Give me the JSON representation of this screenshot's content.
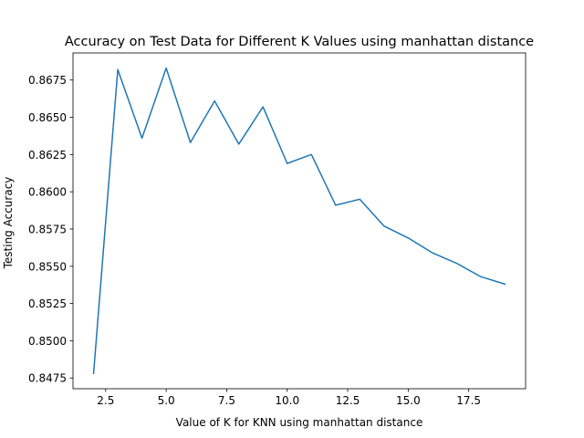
{
  "chart_data": {
    "type": "line",
    "title": "Accuracy on Test Data for Different K Values using manhattan distance",
    "xlabel": "Value of K for KNN using manhattan distance",
    "ylabel": "Testing Accuracy",
    "x": [
      2,
      3,
      4,
      5,
      6,
      7,
      8,
      9,
      10,
      11,
      12,
      13,
      14,
      15,
      16,
      17,
      18,
      19
    ],
    "series": [
      {
        "values": [
          0.8478,
          0.8682,
          0.8636,
          0.8683,
          0.8633,
          0.8661,
          0.8632,
          0.8657,
          0.8619,
          0.8625,
          0.8591,
          0.8595,
          0.8577,
          0.8569,
          0.8559,
          0.8552,
          0.8543,
          0.8538
        ],
        "color": "#1f77b4"
      }
    ],
    "xlim": [
      1.15,
      19.85
    ],
    "ylim": [
      0.84678,
      0.86932
    ],
    "xticks": [
      2.5,
      5.0,
      7.5,
      10.0,
      12.5,
      15.0,
      17.5
    ],
    "xtick_labels": [
      "2.5",
      "5.0",
      "7.5",
      "10.0",
      "12.5",
      "15.0",
      "17.5"
    ],
    "yticks": [
      0.8475,
      0.85,
      0.8525,
      0.855,
      0.8575,
      0.86,
      0.8625,
      0.865,
      0.8675
    ],
    "ytick_labels": [
      "0.8475",
      "0.8500",
      "0.8525",
      "0.8550",
      "0.8575",
      "0.8600",
      "0.8625",
      "0.8650",
      "0.8675"
    ],
    "grid": false,
    "legend": "none"
  }
}
